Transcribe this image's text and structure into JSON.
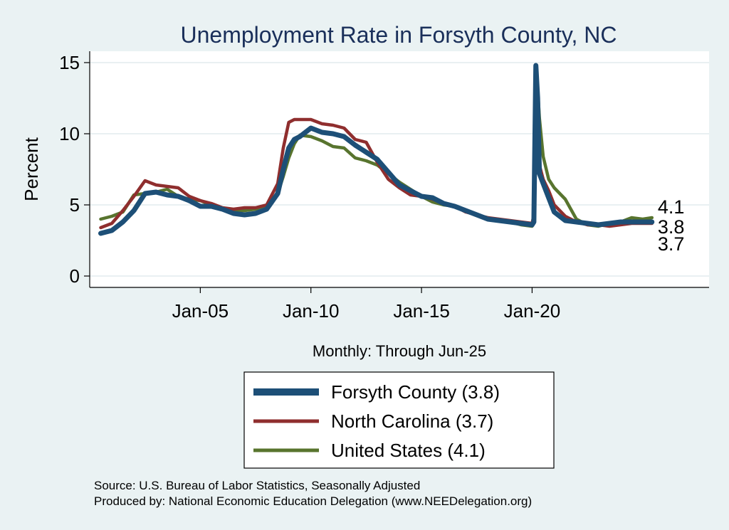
{
  "chart_data": {
    "type": "line",
    "title": "Unemployment Rate in Forsyth  County, NC",
    "xlabel": "Monthly: Through Jun-25",
    "ylabel": "Percent",
    "xlim": [
      2000.0,
      2028.0
    ],
    "ylim": [
      -0.8,
      15.8
    ],
    "yticks": [
      0,
      5,
      10,
      15
    ],
    "xticks": [
      {
        "value": 2005.0,
        "label": "Jan-05"
      },
      {
        "value": 2010.0,
        "label": "Jan-10"
      },
      {
        "value": 2015.0,
        "label": "Jan-15"
      },
      {
        "value": 2020.0,
        "label": "Jan-20"
      }
    ],
    "grid": true,
    "series": [
      {
        "name": "Forsyth  County",
        "legend": "Forsyth  County (3.8)",
        "last_label": "3.8",
        "color": "#1d4f77",
        "x": [
          2000.5,
          2001.0,
          2001.5,
          2002.0,
          2002.5,
          2003.0,
          2003.5,
          2004.0,
          2004.5,
          2005.0,
          2005.5,
          2006.0,
          2006.5,
          2007.0,
          2007.5,
          2008.0,
          2008.5,
          2008.75,
          2009.0,
          2009.25,
          2009.5,
          2010.0,
          2010.5,
          2011.0,
          2011.5,
          2012.0,
          2012.5,
          2013.0,
          2013.5,
          2014.0,
          2014.5,
          2015.0,
          2015.5,
          2016.0,
          2016.5,
          2017.0,
          2017.5,
          2018.0,
          2018.5,
          2019.0,
          2019.5,
          2020.0,
          2020.08,
          2020.17,
          2020.25,
          2020.33,
          2020.5,
          2020.75,
          2021.0,
          2021.5,
          2022.0,
          2022.5,
          2023.0,
          2023.5,
          2024.0,
          2024.5,
          2025.0,
          2025.42
        ],
        "y": [
          3.0,
          3.2,
          3.8,
          4.6,
          5.8,
          5.9,
          5.7,
          5.6,
          5.3,
          4.9,
          4.9,
          4.7,
          4.4,
          4.3,
          4.4,
          4.7,
          5.8,
          7.5,
          9.0,
          9.6,
          9.8,
          10.4,
          10.1,
          10.0,
          9.8,
          9.2,
          8.7,
          8.2,
          7.3,
          6.4,
          6.0,
          5.6,
          5.5,
          5.1,
          4.9,
          4.6,
          4.3,
          4.0,
          3.9,
          3.8,
          3.7,
          3.6,
          3.8,
          14.8,
          12.5,
          7.2,
          6.5,
          5.5,
          4.5,
          3.9,
          3.8,
          3.7,
          3.6,
          3.7,
          3.8,
          3.8,
          3.8,
          3.8
        ]
      },
      {
        "name": "North Carolina",
        "legend": "North Carolina (3.7)",
        "last_label": "3.7",
        "color": "#8f2e2e",
        "x": [
          2000.5,
          2001.0,
          2001.5,
          2002.0,
          2002.5,
          2003.0,
          2003.5,
          2004.0,
          2004.5,
          2005.0,
          2005.5,
          2006.0,
          2006.5,
          2007.0,
          2007.5,
          2008.0,
          2008.5,
          2008.75,
          2009.0,
          2009.25,
          2009.5,
          2010.0,
          2010.5,
          2011.0,
          2011.5,
          2012.0,
          2012.5,
          2013.0,
          2013.5,
          2014.0,
          2014.5,
          2015.0,
          2015.5,
          2016.0,
          2016.5,
          2017.0,
          2017.5,
          2018.0,
          2018.5,
          2019.0,
          2019.5,
          2020.0,
          2020.08,
          2020.17,
          2020.25,
          2020.33,
          2020.5,
          2020.75,
          2021.0,
          2021.5,
          2022.0,
          2022.5,
          2023.0,
          2023.5,
          2024.0,
          2024.5,
          2025.0,
          2025.42
        ],
        "y": [
          3.4,
          3.7,
          4.6,
          5.6,
          6.7,
          6.4,
          6.3,
          6.2,
          5.6,
          5.3,
          5.1,
          4.8,
          4.7,
          4.8,
          4.8,
          5.0,
          6.5,
          9.0,
          10.8,
          11.0,
          11.0,
          11.0,
          10.7,
          10.6,
          10.4,
          9.6,
          9.4,
          8.0,
          6.8,
          6.2,
          5.7,
          5.6,
          5.4,
          5.1,
          4.9,
          4.5,
          4.3,
          4.1,
          4.0,
          3.9,
          3.8,
          3.7,
          4.3,
          13.5,
          10.5,
          7.8,
          6.8,
          6.0,
          5.0,
          4.2,
          3.8,
          3.6,
          3.6,
          3.5,
          3.6,
          3.7,
          3.7,
          3.7
        ]
      },
      {
        "name": "United States",
        "legend": "United States (4.1)",
        "last_label": "4.1",
        "color": "#58742e",
        "x": [
          2000.5,
          2001.0,
          2001.5,
          2002.0,
          2002.5,
          2003.0,
          2003.5,
          2004.0,
          2004.5,
          2005.0,
          2005.5,
          2006.0,
          2006.5,
          2007.0,
          2007.5,
          2008.0,
          2008.5,
          2008.75,
          2009.0,
          2009.25,
          2009.5,
          2010.0,
          2010.5,
          2011.0,
          2011.5,
          2012.0,
          2012.5,
          2013.0,
          2013.5,
          2014.0,
          2014.5,
          2015.0,
          2015.5,
          2016.0,
          2016.5,
          2017.0,
          2017.5,
          2018.0,
          2018.5,
          2019.0,
          2019.5,
          2020.0,
          2020.08,
          2020.17,
          2020.25,
          2020.33,
          2020.5,
          2020.75,
          2021.0,
          2021.5,
          2022.0,
          2022.5,
          2023.0,
          2023.5,
          2024.0,
          2024.5,
          2025.0,
          2025.42
        ],
        "y": [
          4.0,
          4.2,
          4.5,
          5.7,
          5.8,
          5.9,
          6.1,
          5.6,
          5.4,
          5.3,
          5.0,
          4.7,
          4.6,
          4.6,
          4.7,
          5.0,
          5.8,
          7.0,
          8.3,
          9.3,
          9.9,
          9.8,
          9.5,
          9.1,
          9.0,
          8.3,
          8.1,
          7.8,
          7.2,
          6.6,
          6.1,
          5.6,
          5.2,
          5.0,
          4.9,
          4.6,
          4.3,
          4.1,
          3.9,
          3.8,
          3.6,
          3.5,
          4.4,
          14.7,
          13.2,
          11.1,
          8.4,
          6.8,
          6.2,
          5.4,
          4.0,
          3.6,
          3.5,
          3.7,
          3.8,
          4.1,
          4.0,
          4.1
        ]
      }
    ]
  },
  "source_line": "Source: U.S. Bureau of Labor Statistics, Seasonally Adjusted",
  "produced_line": "Produced by: National Economic Education Delegation (www.NEEDelegation.org)"
}
